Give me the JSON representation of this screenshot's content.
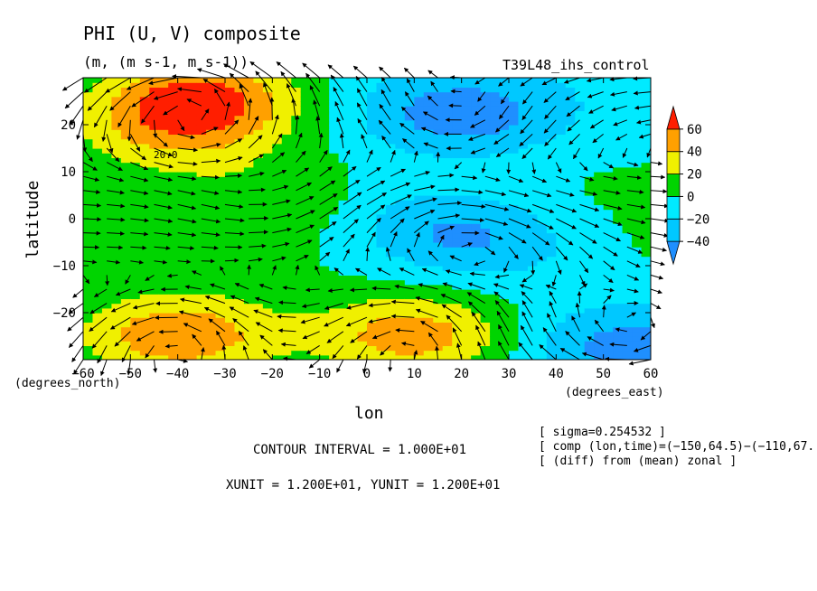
{
  "chart_data": {
    "type": "heatmap",
    "overlay": "vector",
    "title": "PHI (U, V) composite",
    "subtitle": "(m, (m s-1, m s-1))",
    "experiment": "T39L48_ihs_control",
    "xlabel": "lon",
    "ylabel": "latitude",
    "x_units": "(degrees_east)",
    "y_units": "(degrees_north)",
    "xlim": [
      -60,
      60
    ],
    "ylim": [
      -30,
      30
    ],
    "x_ticks": [
      -60,
      -50,
      -40,
      -30,
      -20,
      -10,
      0,
      10,
      20,
      30,
      40,
      50,
      60
    ],
    "y_ticks": [
      -20,
      -10,
      0,
      10,
      20
    ],
    "x_tick_labels": [
      "−60",
      "−50",
      "−40",
      "−30",
      "−20",
      "−10",
      "0",
      "10",
      "20",
      "30",
      "40",
      "50",
      "60"
    ],
    "y_tick_labels": [
      "−20",
      "−10",
      "0",
      "10",
      "20"
    ],
    "colorbar": {
      "levels": [
        -40,
        -20,
        0,
        20,
        40,
        60
      ],
      "labels": [
        "−40",
        "−20",
        "0",
        "20",
        "40",
        "60"
      ],
      "colors": [
        "#1f8fff",
        "#00c8ff",
        "#00eaff",
        "#00d400",
        "#f0f000",
        "#ffa000",
        "#ff1e00"
      ]
    },
    "highs": [
      {
        "lon": -35,
        "lat": 27,
        "value": 60
      },
      {
        "lon": -40,
        "lat": 20,
        "value": 45
      },
      {
        "lon": -20,
        "lat": 3,
        "value": 15
      },
      {
        "lon": -40,
        "lat": -25,
        "value": 65
      },
      {
        "lon": 10,
        "lat": -25,
        "value": 60
      }
    ],
    "lows": [
      {
        "lon": 20,
        "lat": 22,
        "value": -45
      },
      {
        "lon": 25,
        "lat": -5,
        "value": -35
      },
      {
        "lon": 55,
        "lat": -27,
        "value": -40
      },
      {
        "lon": 10,
        "lat": 0,
        "value": -25
      }
    ],
    "contour_label": "20.0",
    "info_lines": [
      "[ sigma=0.254532 ]",
      "[ comp (lon,time)=(−150,64.5)−(−110,67.",
      "[ (diff) from (mean) zonal ]"
    ],
    "contour_interval": "CONTOUR INTERVAL = 1.000E+01",
    "vector_units": "XUNIT = 1.200E+01, YUNIT = 1.200E+01"
  }
}
